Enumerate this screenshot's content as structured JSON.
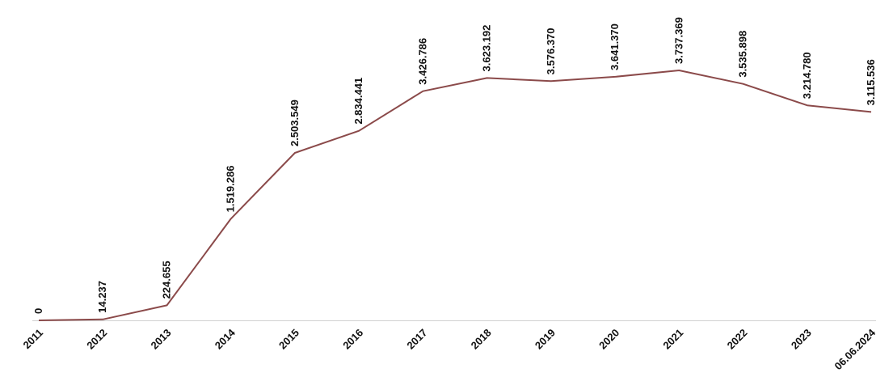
{
  "chart_data": {
    "type": "line",
    "categories": [
      "2011",
      "2012",
      "2013",
      "2014",
      "2015",
      "2016",
      "2017",
      "2018",
      "2019",
      "2020",
      "2021",
      "2022",
      "2023",
      "06.06.2024"
    ],
    "values": [
      0,
      14237,
      224655,
      1519286,
      2503549,
      2834441,
      3426786,
      3623192,
      3576370,
      3641370,
      3737369,
      3535898,
      3214780,
      3115536
    ],
    "data_labels": [
      "0",
      "14.237",
      "224.655",
      "1.519.286",
      "2.503.549",
      "2.834.441",
      "3.426.786",
      "3.623.192",
      "3.576.370",
      "3.641.370",
      "3.737.369",
      "3.535.898",
      "3.214.780",
      "3.115.536"
    ],
    "title": "",
    "xlabel": "",
    "ylabel": "",
    "ylim": [
      0,
      3737369
    ],
    "grid": false,
    "legend": "none",
    "colors": {
      "line": "#8b4a4a",
      "axis": "#d0d0d0",
      "text": "#111111"
    }
  }
}
